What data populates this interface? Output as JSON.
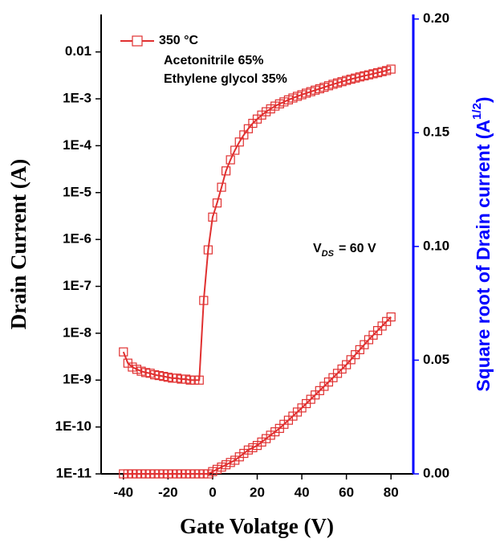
{
  "chart_data": {
    "type": "line",
    "xlabel": "Gate Volatge (V)",
    "ylabel": "Drain Current (A)",
    "y2label": {
      "text": "Square root of Drain current (A",
      "sup": "1/2",
      "end": ")"
    },
    "annotations": [
      "Acetonitrile 65%",
      "Ethylene glycol 35%"
    ],
    "vds": {
      "symbol": "V",
      "sub": "DS",
      "text": "= 60 V"
    },
    "xlim": [
      -50,
      90
    ],
    "xticks": [
      -40,
      -20,
      0,
      20,
      40,
      60,
      80
    ],
    "ylog": true,
    "ylim": [
      1e-11,
      0.063
    ],
    "yticks": [
      {
        "value": 1e-11,
        "label": "1E-11"
      },
      {
        "value": 1e-10,
        "label": "1E-10"
      },
      {
        "value": 1e-09,
        "label": "1E-9"
      },
      {
        "value": 1e-08,
        "label": "1E-8"
      },
      {
        "value": 1e-07,
        "label": "1E-7"
      },
      {
        "value": 1e-06,
        "label": "1E-6"
      },
      {
        "value": 1e-05,
        "label": "1E-5"
      },
      {
        "value": 0.0001,
        "label": "1E-4"
      },
      {
        "value": 0.001,
        "label": "1E-3"
      },
      0.01
    ],
    "y2lim": [
      0,
      0.202
    ],
    "y2ticks": [
      {
        "value": 0,
        "label": "0.00"
      },
      {
        "value": 0.05,
        "label": "0.05"
      },
      {
        "value": 0.1,
        "label": "0.10"
      },
      {
        "value": 0.15,
        "label": "0.15"
      },
      {
        "value": 0.2,
        "label": "0.20"
      }
    ],
    "y2color": "#0000ff",
    "x": [
      -40,
      -38,
      -36,
      -34,
      -32,
      -30,
      -28,
      -26,
      -24,
      -22,
      -20,
      -18,
      -16,
      -14,
      -12,
      -10,
      -8,
      -6,
      -4,
      -2,
      0,
      2,
      4,
      6,
      8,
      10,
      12,
      14,
      16,
      18,
      20,
      22,
      24,
      26,
      28,
      30,
      32,
      34,
      36,
      38,
      40,
      42,
      44,
      46,
      48,
      50,
      52,
      54,
      56,
      58,
      60,
      62,
      64,
      66,
      68,
      70,
      72,
      74,
      76,
      78,
      80
    ],
    "series": [
      {
        "name": "350 °C",
        "color": "#e03030",
        "values": [
          4e-09,
          2.3e-09,
          1.9e-09,
          1.7e-09,
          1.55e-09,
          1.45e-09,
          1.4e-09,
          1.3e-09,
          1.25e-09,
          1.2e-09,
          1.15e-09,
          1.1e-09,
          1.1e-09,
          1.05e-09,
          1.05e-09,
          1e-09,
          1e-09,
          1e-09,
          5e-08,
          6e-07,
          3e-06,
          6e-06,
          1.3e-05,
          2.9e-05,
          5e-05,
          8e-05,
          0.00012,
          0.00017,
          0.00023,
          0.0003,
          0.00037,
          0.00045,
          0.00053,
          0.00061,
          0.0007,
          0.00078,
          0.00086,
          0.00095,
          0.00104,
          0.00113,
          0.00122,
          0.00132,
          0.00142,
          0.00153,
          0.00164,
          0.00176,
          0.0019,
          0.00204,
          0.00218,
          0.00232,
          0.00247,
          0.00262,
          0.00277,
          0.00293,
          0.00309,
          0.00325,
          0.00342,
          0.0036,
          0.0038,
          0.004,
          0.0043
        ]
      },
      {
        "color": "#e03030",
        "axis": "y2",
        "values": [
          0,
          0,
          0,
          0,
          0,
          0,
          0,
          0,
          0,
          0,
          0,
          0,
          0,
          0,
          0,
          0,
          0,
          0,
          0,
          0,
          0.001,
          0.002,
          0.003,
          0.004,
          0.005,
          0.006,
          0.0075,
          0.009,
          0.0105,
          0.0115,
          0.0125,
          0.014,
          0.0155,
          0.017,
          0.0185,
          0.02,
          0.0218,
          0.0236,
          0.0254,
          0.0272,
          0.029,
          0.0309,
          0.0328,
          0.0347,
          0.0366,
          0.0385,
          0.0404,
          0.0423,
          0.0442,
          0.0461,
          0.048,
          0.0502,
          0.0524,
          0.0546,
          0.0568,
          0.059,
          0.061,
          0.063,
          0.065,
          0.067,
          0.069
        ]
      }
    ]
  }
}
